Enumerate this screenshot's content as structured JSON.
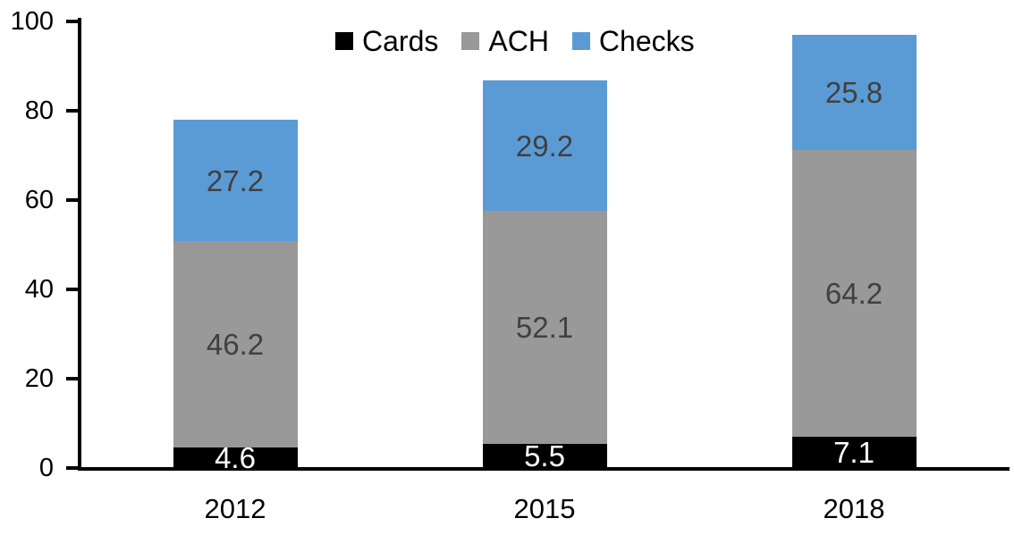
{
  "chart_data": {
    "type": "bar",
    "stacked": true,
    "title": "",
    "xlabel": "",
    "ylabel": "",
    "categories": [
      "2012",
      "2015",
      "2018"
    ],
    "series": [
      {
        "name": "Cards",
        "color": "#000000",
        "label_color": "#FFFFFF",
        "values": [
          4.6,
          5.5,
          7.1
        ]
      },
      {
        "name": "ACH",
        "color": "#999999",
        "label_color": "#404040",
        "values": [
          46.2,
          52.1,
          64.2
        ]
      },
      {
        "name": "Checks",
        "color": "#5B9BD5",
        "label_color": "#404040",
        "values": [
          27.2,
          29.2,
          25.8
        ]
      }
    ],
    "totals": [
      78.0,
      86.8,
      97.1
    ],
    "ylim": [
      0,
      100
    ],
    "yticks": [
      "0",
      "20",
      "40",
      "60",
      "80",
      "100"
    ],
    "grid": false,
    "legend_position": "top",
    "axis_color": "#000000",
    "background_color": "#FFFFFF"
  }
}
